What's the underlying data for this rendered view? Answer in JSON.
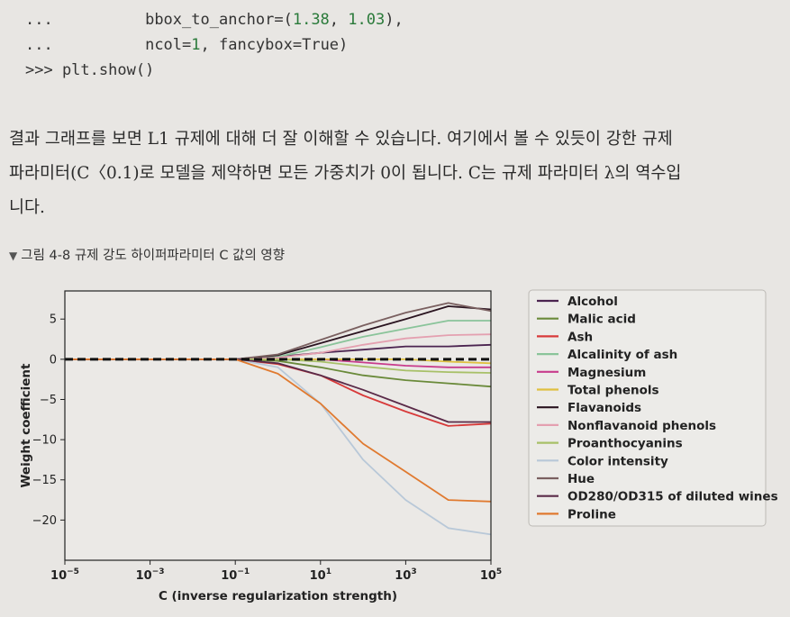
{
  "code": {
    "line1_prompt": "...",
    "line1_text": "bbox_to_anchor=(",
    "line1_n1": "1.38",
    "line1_sep": ", ",
    "line1_n2": "1.03",
    "line1_end": "),",
    "line2_prompt": "...",
    "line2_text_a": "ncol=",
    "line2_n": "1",
    "line2_text_b": ", fancybox=True)",
    "line3": ">>> plt.show()"
  },
  "paragraph": {
    "line1": "결과 그래프를 보면 L1 규제에 대해 더 잘 이해할 수 있습니다. 여기에서 볼 수 있듯이 강한 규제",
    "line2": "파라미터(C〈0.1)로 모델을 제약하면 모든 가중치가 0이 됩니다. C는 규제 파라미터 λ의 역수입",
    "line3": "니다."
  },
  "caption": "그림 4-8 규제 강도 하이퍼파라미터 C 값의 영향",
  "chart_data": {
    "type": "line",
    "xscale": "log",
    "x": [
      1e-05,
      0.0001,
      0.001,
      0.01,
      0.1,
      1,
      10,
      100,
      1000,
      10000,
      100000
    ],
    "xticks": [
      {
        "value": 1e-05,
        "base": "10",
        "exp": "−5"
      },
      {
        "value": 0.001,
        "base": "10",
        "exp": "−3"
      },
      {
        "value": 0.1,
        "base": "10",
        "exp": "−1"
      },
      {
        "value": 10,
        "base": "10",
        "exp": "1"
      },
      {
        "value": 1000,
        "base": "10",
        "exp": "3"
      },
      {
        "value": 100000,
        "base": "10",
        "exp": "5"
      }
    ],
    "yticks": [
      "5",
      "0",
      "−5",
      "−10",
      "−15",
      "−20"
    ],
    "ytick_values": [
      5,
      0,
      -5,
      -10,
      -15,
      -20
    ],
    "xlim": [
      1e-05,
      100000
    ],
    "ylim": [
      -25,
      8.5
    ],
    "xlabel": "C (inverse regularization strength)",
    "ylabel": "Weight coefficient",
    "legend_placement": "outside-right",
    "zero_line": {
      "style": "dashed",
      "color": "#111111"
    },
    "series": [
      {
        "name": "Alcohol",
        "color": "#4b2450",
        "values": [
          0,
          0,
          0,
          0,
          0,
          0.3,
          0.8,
          1.2,
          1.6,
          1.6,
          1.8
        ]
      },
      {
        "name": "Malic acid",
        "color": "#6a8a3a",
        "values": [
          0,
          0,
          0,
          0,
          0,
          -0.2,
          -1.0,
          -2.0,
          -2.6,
          -3.0,
          -3.4
        ]
      },
      {
        "name": "Ash",
        "color": "#d83a3a",
        "values": [
          0,
          0,
          0,
          0,
          0,
          -0.6,
          -2.0,
          -4.5,
          -6.5,
          -8.3,
          -8.0
        ]
      },
      {
        "name": "Alcalinity of ash",
        "color": "#8ac49a",
        "values": [
          0,
          0,
          0,
          0,
          0,
          0.3,
          1.5,
          2.8,
          3.8,
          4.8,
          4.8
        ]
      },
      {
        "name": "Magnesium",
        "color": "#c83c8c",
        "values": [
          0,
          0,
          0,
          0,
          0,
          0,
          0,
          -0.4,
          -0.8,
          -1.0,
          -1.0
        ]
      },
      {
        "name": "Total phenols",
        "color": "#e0c040",
        "values": [
          0,
          0,
          0,
          0,
          0,
          0,
          0,
          0,
          0,
          -0.3,
          -0.5
        ]
      },
      {
        "name": "Flavanoids",
        "color": "#2a1420",
        "values": [
          0,
          0,
          0,
          0,
          0,
          0.5,
          2.0,
          3.5,
          5.0,
          6.6,
          6.2
        ]
      },
      {
        "name": "Nonflavanoid phenols",
        "color": "#e4a0b0",
        "values": [
          0,
          0,
          0,
          0,
          0,
          0.2,
          0.8,
          1.8,
          2.6,
          3.0,
          3.1
        ]
      },
      {
        "name": "Proanthocyanins",
        "color": "#a8c068",
        "values": [
          0,
          0,
          0,
          0,
          0,
          0,
          -0.3,
          -0.9,
          -1.4,
          -1.6,
          -1.7
        ]
      },
      {
        "name": "Color intensity",
        "color": "#b8c8d8",
        "values": [
          0,
          0,
          0,
          0,
          0,
          -1.0,
          -5.5,
          -12.5,
          -17.5,
          -21.0,
          -21.8
        ]
      },
      {
        "name": "Hue",
        "color": "#7a6060",
        "values": [
          0,
          0,
          0,
          0,
          0,
          0.6,
          2.4,
          4.2,
          5.8,
          7.0,
          6.0
        ]
      },
      {
        "name": "OD280/OD315 of diluted wines",
        "color": "#5a2a48",
        "values": [
          0,
          0,
          0,
          0,
          0,
          -0.5,
          -2.0,
          -3.8,
          -5.8,
          -7.8,
          -7.8
        ]
      },
      {
        "name": "Proline",
        "color": "#e07a30",
        "values": [
          0,
          0,
          0,
          0,
          0,
          -1.8,
          -5.5,
          -10.5,
          -14.0,
          -17.5,
          -17.7
        ]
      }
    ]
  }
}
